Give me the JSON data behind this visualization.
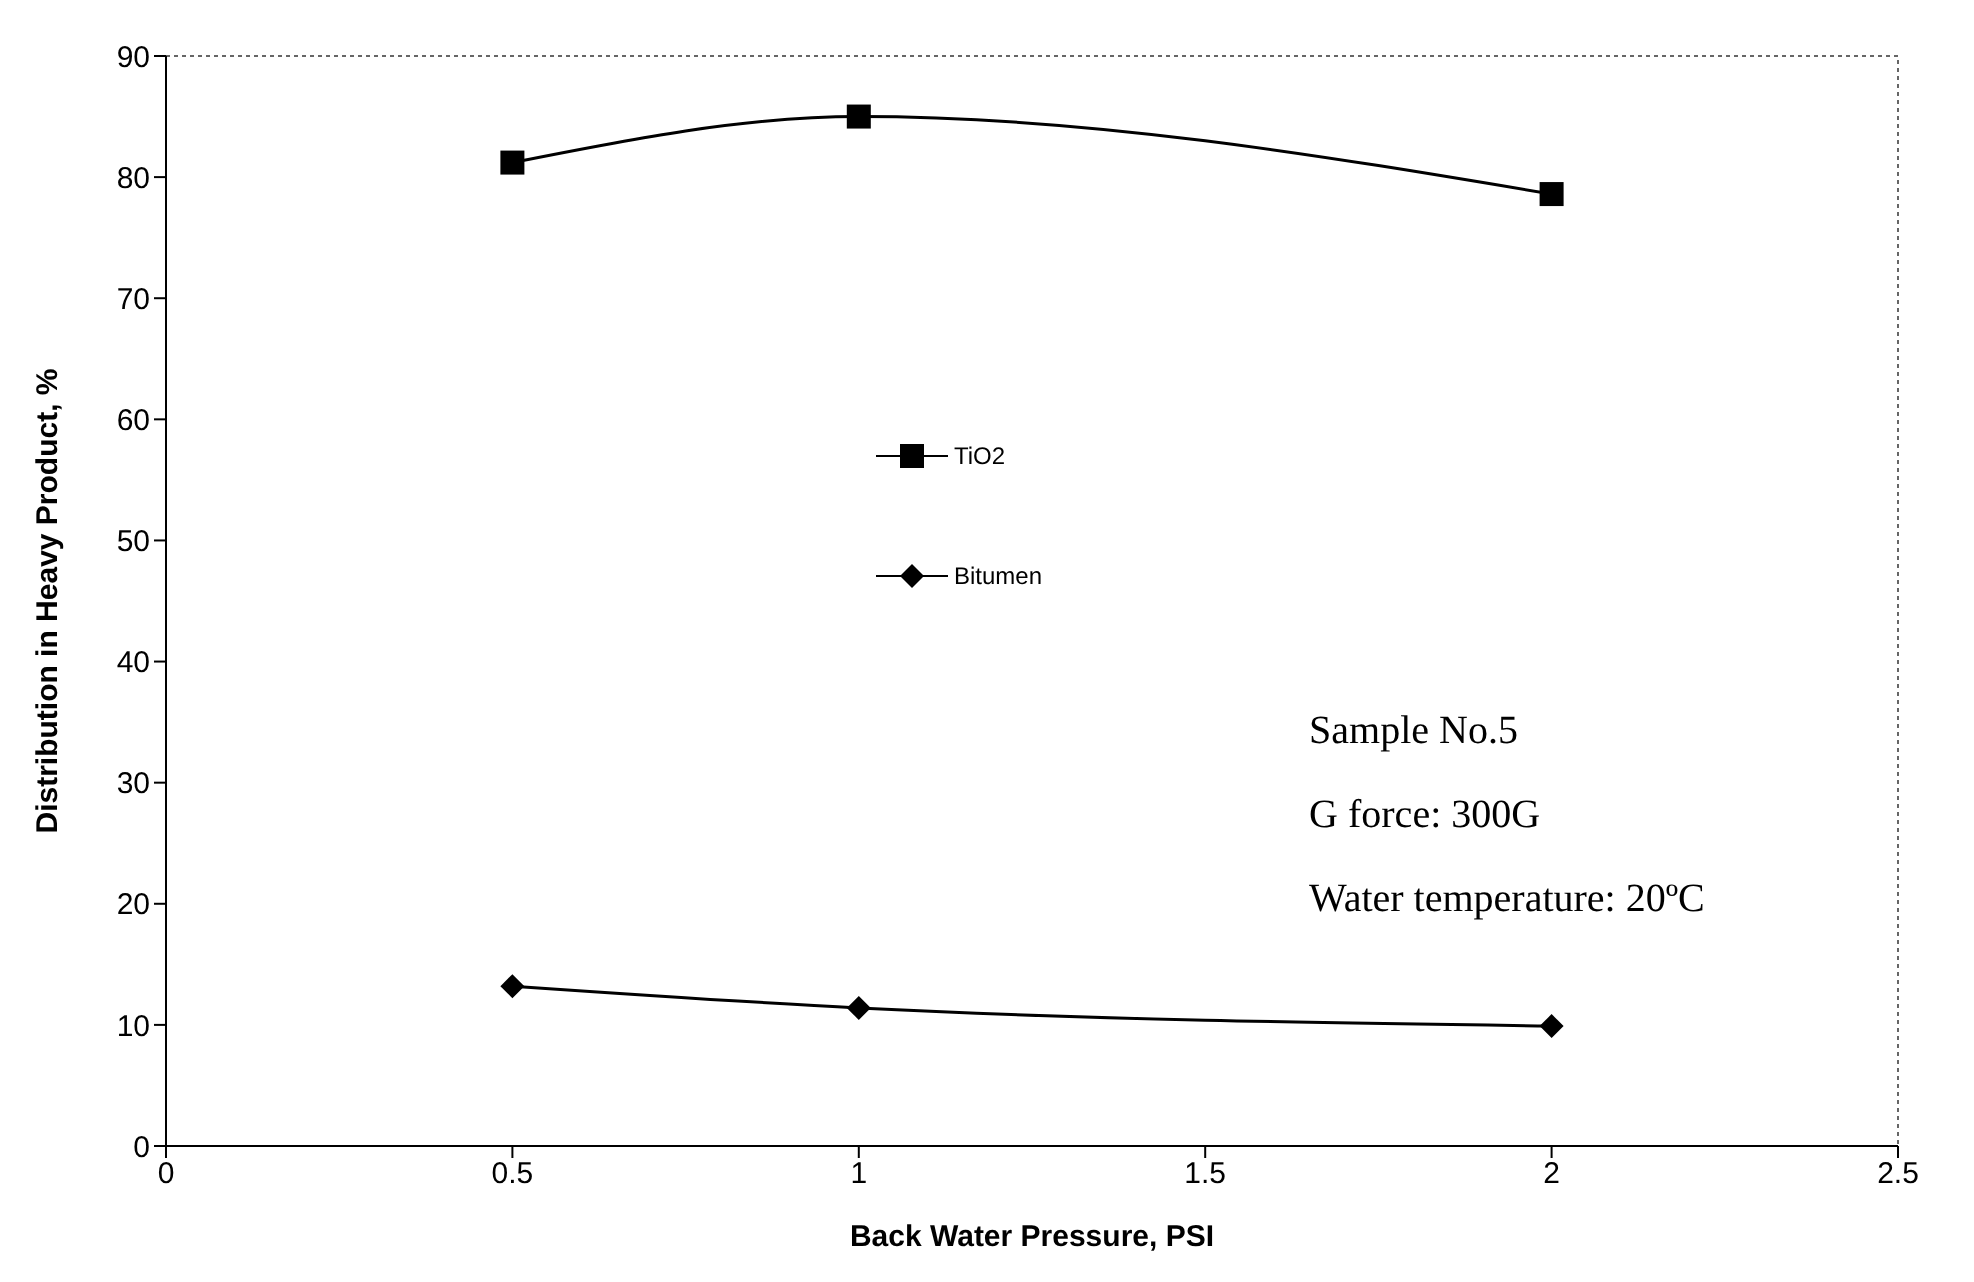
{
  "chart_data": {
    "type": "line",
    "xlabel": "Back Water Pressure, PSI",
    "ylabel": "Distribution in Heavy Product, %",
    "x": [
      0.5,
      1,
      2
    ],
    "series": [
      {
        "name": "TiO2",
        "color": "#000000",
        "marker": "square",
        "values": [
          81.2,
          85,
          78.6
        ]
      },
      {
        "name": "Bitumen",
        "color": "#000000",
        "marker": "diamond",
        "values": [
          13.2,
          11.4,
          9.9
        ]
      }
    ],
    "xlim": [
      0,
      2.5
    ],
    "xticks": [
      0,
      0.5,
      1,
      1.5,
      2,
      2.5
    ],
    "ylim": [
      0,
      90
    ],
    "yticks": [
      0,
      10,
      20,
      30,
      40,
      50,
      60,
      70,
      80,
      90
    ],
    "grid": false,
    "legend": "center",
    "line_style": "solid",
    "annotations": [
      "Sample No.5",
      "G force: 300G",
      "Water temperature: 20ºC"
    ]
  }
}
